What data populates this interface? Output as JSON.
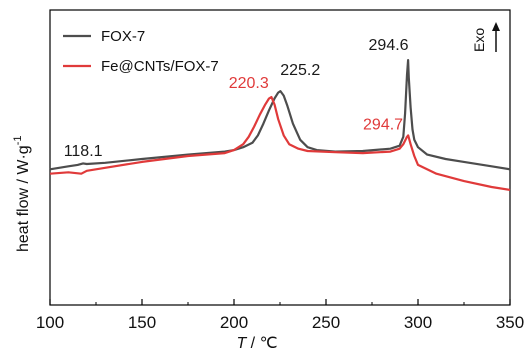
{
  "chart_data": {
    "type": "line",
    "xlabel_italic": "T",
    "xlabel_rest": " / ℃",
    "ylabel": "heat flow / W·g",
    "ylabel_sup": "-1",
    "xlim": [
      100,
      350
    ],
    "ylim": [
      0,
      10
    ],
    "xticks": [
      "100",
      "150",
      "200",
      "250",
      "300",
      "350"
    ],
    "exo_label": "Exo",
    "colors": {
      "FOX-7": "#4d4d4d",
      "Fe@CNTs/FOX-7": "#e03a3a"
    },
    "series": [
      {
        "name": "FOX-7",
        "color": "#4d4d4d",
        "x": [
          100,
          110,
          115,
          118,
          120,
          130,
          150,
          175,
          195,
          200,
          205,
          210,
          213,
          216,
          219,
          222,
          224,
          225.2,
          227,
          229,
          232,
          236,
          240,
          245,
          255,
          270,
          285,
          290,
          292,
          293,
          294,
          294.6,
          295,
          296,
          297,
          298,
          300,
          305,
          315,
          325,
          340,
          350
        ],
        "y": [
          4.6,
          4.7,
          4.75,
          4.8,
          4.78,
          4.82,
          4.95,
          5.1,
          5.2,
          5.25,
          5.35,
          5.5,
          5.75,
          6.15,
          6.6,
          7.0,
          7.2,
          7.25,
          7.1,
          6.75,
          6.15,
          5.6,
          5.35,
          5.25,
          5.2,
          5.22,
          5.3,
          5.4,
          5.7,
          6.5,
          7.8,
          8.3,
          7.7,
          6.7,
          5.95,
          5.6,
          5.35,
          5.1,
          4.95,
          4.85,
          4.7,
          4.6
        ]
      },
      {
        "name": "Fe@CNTs/FOX-7",
        "color": "#e03a3a",
        "x": [
          100,
          110,
          117,
          120,
          130,
          150,
          175,
          195,
          200,
          205,
          208,
          211,
          214,
          217,
          219,
          220.3,
          222,
          224,
          227,
          230,
          235,
          240,
          255,
          270,
          285,
          290,
          292,
          294,
          294.7,
          296,
          298,
          300,
          310,
          325,
          340,
          350
        ],
        "y": [
          4.45,
          4.5,
          4.45,
          4.55,
          4.65,
          4.85,
          5.05,
          5.15,
          5.25,
          5.45,
          5.7,
          6.05,
          6.45,
          6.8,
          7.0,
          7.05,
          6.8,
          6.3,
          5.75,
          5.45,
          5.3,
          5.22,
          5.18,
          5.15,
          5.2,
          5.3,
          5.45,
          5.7,
          5.75,
          5.45,
          5.05,
          4.75,
          4.45,
          4.2,
          4.0,
          3.9
        ]
      }
    ],
    "annotations": [
      {
        "text": "118.1",
        "x": 118,
        "y": 5.05,
        "color": "#1a1a1a"
      },
      {
        "text": "225.2",
        "x": 236,
        "y": 7.8,
        "color": "#1a1a1a"
      },
      {
        "text": "220.3",
        "x": 208,
        "y": 7.35,
        "color": "#e03a3a"
      },
      {
        "text": "294.6",
        "x": 284,
        "y": 8.65,
        "color": "#1a1a1a"
      },
      {
        "text": "294.7",
        "x": 281,
        "y": 5.95,
        "color": "#e03a3a"
      }
    ]
  }
}
